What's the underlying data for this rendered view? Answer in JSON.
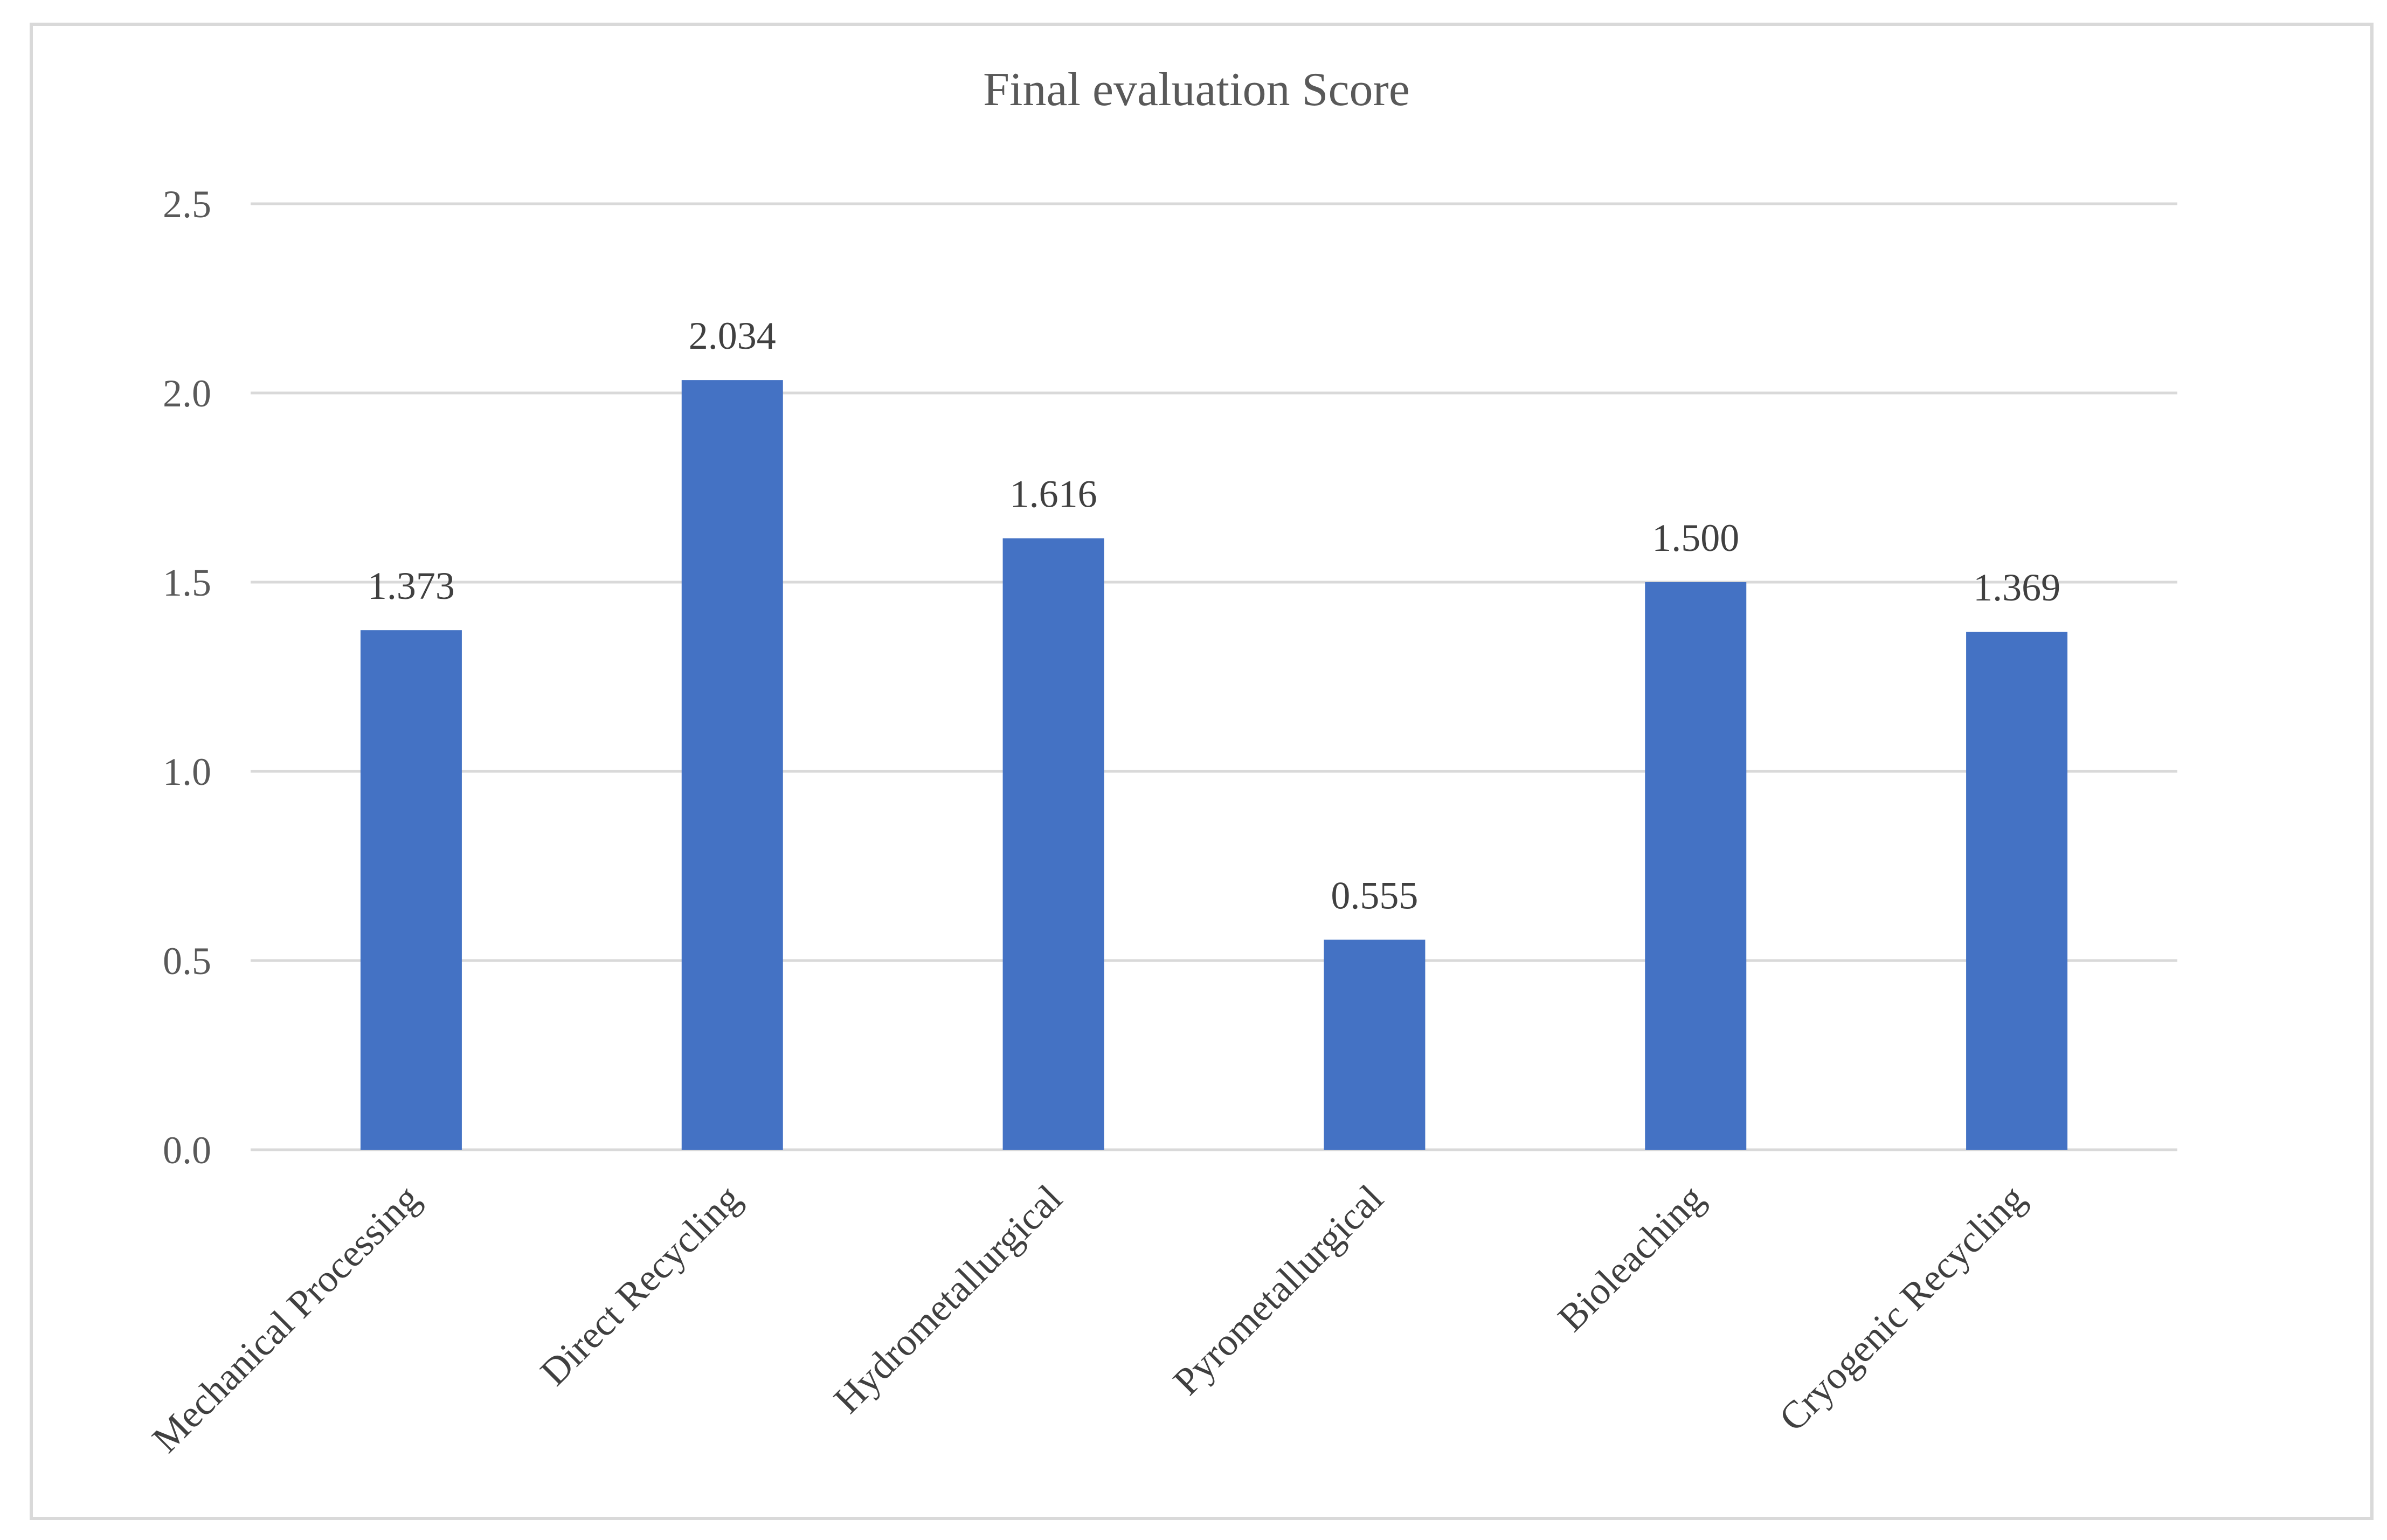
{
  "chart_data": {
    "type": "bar",
    "title": "Final evaluation Score",
    "xlabel": "",
    "ylabel": "",
    "categories": [
      "Mechanical Processing",
      "Direct Recycling",
      "Hydrometallurgical",
      "Pyrometallurgical",
      "Bioleaching",
      "Cryogenic Recycling"
    ],
    "values": [
      1.373,
      2.034,
      1.616,
      0.555,
      1.5,
      1.369
    ],
    "value_labels": [
      "1.373",
      "2.034",
      "1.616",
      "0.555",
      "1.500",
      "1.369"
    ],
    "ylim": [
      0,
      2.5
    ],
    "yticks": [
      0.0,
      0.5,
      1.0,
      1.5,
      2.0,
      2.5
    ],
    "ytick_labels": [
      "0.0",
      "0.5",
      "1.0",
      "1.5",
      "2.0",
      "2.5"
    ],
    "grid": true,
    "legend": "none",
    "bar_color": "#4472c4"
  }
}
